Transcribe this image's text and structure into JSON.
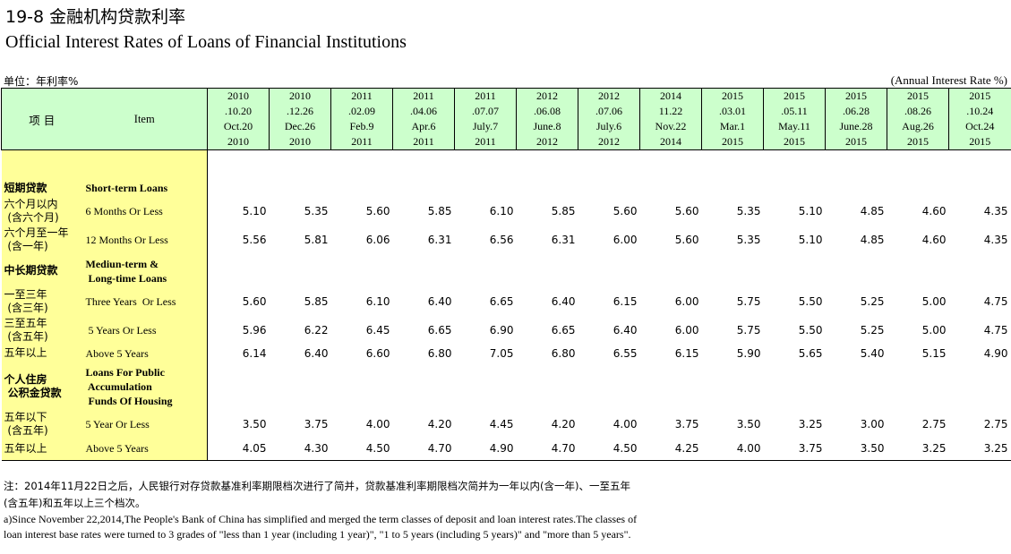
{
  "title_cn": "19-8  金融机构贷款利率",
  "title_en": "Official Interest Rates of Loans of Financial Institutions",
  "unit_cn": "单位：年利率%",
  "unit_en": "(Annual Interest Rate %)",
  "header": {
    "item_cn": "项  目",
    "item_en": "Item",
    "dates": [
      {
        "l1": "2010",
        "l2": ".10.20",
        "l3": "Oct.20",
        "l4": "2010"
      },
      {
        "l1": "2010",
        "l2": ".12.26",
        "l3": "Dec.26",
        "l4": "2010"
      },
      {
        "l1": "2011",
        "l2": ".02.09",
        "l3": "Feb.9",
        "l4": "2011"
      },
      {
        "l1": "2011",
        "l2": ".04.06",
        "l3": "Apr.6",
        "l4": "2011"
      },
      {
        "l1": "2011",
        "l2": ".07.07",
        "l3": "July.7",
        "l4": "2011"
      },
      {
        "l1": "2012",
        "l2": ".06.08",
        "l3": "June.8",
        "l4": "2012"
      },
      {
        "l1": "2012",
        "l2": ".07.06",
        "l3": "July.6",
        "l4": "2012"
      },
      {
        "l1": "2014",
        "l2": "11.22",
        "l3": "Nov.22",
        "l4": "2014"
      },
      {
        "l1": "2015",
        "l2": ".03.01",
        "l3": "Mar.1",
        "l4": "2015"
      },
      {
        "l1": "2015",
        "l2": ".05.11",
        "l3": "May.11",
        "l4": "2015"
      },
      {
        "l1": "2015",
        "l2": ".06.28",
        "l3": "June.28",
        "l4": "2015"
      },
      {
        "l1": "2015",
        "l2": ".08.26",
        "l3": "Aug.26",
        "l4": "2015"
      },
      {
        "l1": "2015",
        "l2": ".10.24",
        "l3": "Oct.24",
        "l4": "2015"
      }
    ]
  },
  "rows": [
    {
      "cn": [
        "短期贷款"
      ],
      "en": [
        "Short-term Loans"
      ],
      "heading": true,
      "values": []
    },
    {
      "cn": [
        "六个月以内",
        " (含六个月)"
      ],
      "en": [
        "6 Months Or Less"
      ],
      "values": [
        "5.10",
        "5.35",
        "5.60",
        "5.85",
        "6.10",
        "5.85",
        "5.60",
        "5.60",
        "5.35",
        "5.10",
        "4.85",
        "4.60",
        "4.35"
      ]
    },
    {
      "cn": [
        "六个月至一年",
        " (含一年)"
      ],
      "en": [
        "12 Months Or Less"
      ],
      "values": [
        "5.56",
        "5.81",
        "6.06",
        "6.31",
        "6.56",
        "6.31",
        "6.00",
        "5.60",
        "5.35",
        "5.10",
        "4.85",
        "4.60",
        "4.35"
      ]
    },
    {
      "cn": [
        "中长期贷款"
      ],
      "en": [
        "Mediun-term &",
        " Long-time Loans"
      ],
      "heading": true,
      "values": []
    },
    {
      "cn": [
        "一至三年",
        " (含三年)"
      ],
      "en": [
        "Three Years  Or Less"
      ],
      "values": [
        "5.60",
        "5.85",
        "6.10",
        "6.40",
        "6.65",
        "6.40",
        "6.15",
        "6.00",
        "5.75",
        "5.50",
        "5.25",
        "5.00",
        "4.75"
      ]
    },
    {
      "cn": [
        "三至五年",
        " (含五年)"
      ],
      "en": [
        " 5 Years Or Less"
      ],
      "values": [
        "5.96",
        "6.22",
        "6.45",
        "6.65",
        "6.90",
        "6.65",
        "6.40",
        "6.00",
        "5.75",
        "5.50",
        "5.25",
        "5.00",
        "4.75"
      ]
    },
    {
      "cn": [
        "五年以上"
      ],
      "en": [
        "Above 5 Years"
      ],
      "values": [
        "6.14",
        "6.40",
        "6.60",
        "6.80",
        "7.05",
        "6.80",
        "6.55",
        "6.15",
        "5.90",
        "5.65",
        "5.40",
        "5.15",
        "4.90"
      ]
    },
    {
      "cn": [
        "个人住房",
        " 公积金贷款"
      ],
      "en": [
        "Loans For Public",
        " Accumulation",
        " Funds Of Housing"
      ],
      "heading": true,
      "values": []
    },
    {
      "cn": [
        "五年以下",
        " (含五年)"
      ],
      "en": [
        "5 Year Or Less"
      ],
      "values": [
        "3.50",
        "3.75",
        "4.00",
        "4.20",
        "4.45",
        "4.20",
        "4.00",
        "3.75",
        "3.50",
        "3.25",
        "3.00",
        "2.75",
        "2.75"
      ]
    },
    {
      "cn": [
        "五年以上"
      ],
      "en": [
        "Above 5 Years"
      ],
      "values": [
        "4.05",
        "4.30",
        "4.50",
        "4.70",
        "4.90",
        "4.70",
        "4.50",
        "4.25",
        "4.00",
        "3.75",
        "3.50",
        "3.25",
        "3.25"
      ]
    }
  ],
  "notes": {
    "cn_line1": "注：2014年11月22日之后，人民银行对存贷款基准利率期限档次进行了简并，贷款基准利率期限档次简并为一年以内(含一年)、一至五年",
    "cn_line2": "(含五年)和五年以上三个档次。",
    "en_line1": "a)Since November 22,2014,The People's Bank of China has simplified and merged the term classes of deposit and loan interest rates.The classes of",
    "en_line2": " loan interest base rates were turned to 3 grades of \"less than 1 year (including 1 year)\", \"1 to 5 years (including 5 years)\" and \"more than 5 years\"."
  }
}
